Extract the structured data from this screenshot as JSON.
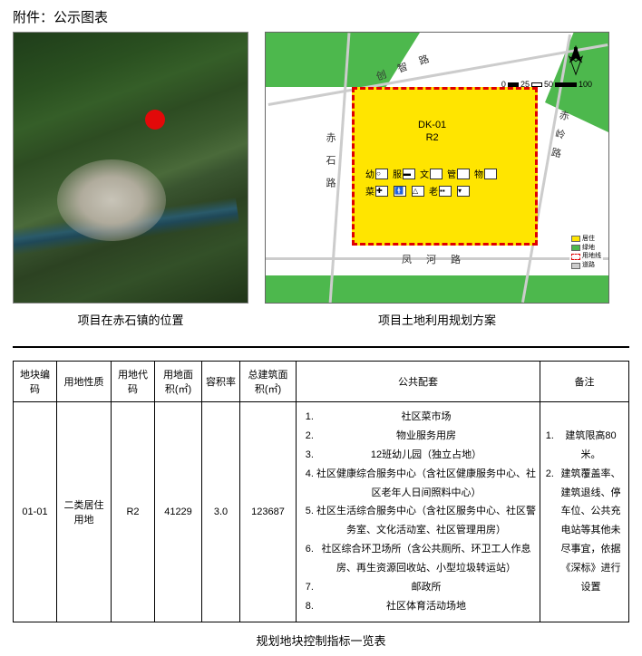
{
  "header": {
    "attachment_title": "附件：公示图表"
  },
  "left_map": {
    "caption": "项目在赤石镇的位置",
    "marker_color": "#e20909",
    "terrain_colors": [
      "#1f3d1a",
      "#355e28",
      "#4a6a3a"
    ],
    "town_color": "#c8c4b8",
    "river_color": "#1f4858"
  },
  "right_map": {
    "caption": "项目土地利用规划方案",
    "plot_fill": "#ffe500",
    "plot_border": "#e00000",
    "green_fill": "#4db84d",
    "block_code": "DK-01",
    "land_code": "R2",
    "roads": {
      "top": "创智路",
      "left": "赤石路",
      "right": "赤岭路",
      "bottom": "凤河路"
    },
    "icon_labels": [
      "幼",
      "服",
      "文",
      "管",
      "物",
      "菜",
      "老"
    ],
    "compass_label": "N",
    "scale_ticks": [
      "0",
      "25",
      "50",
      "100"
    ]
  },
  "table": {
    "columns": [
      "地块编码",
      "用地性质",
      "用地代码",
      "用地面积(㎡)",
      "容积率",
      "总建筑面积(㎡)",
      "公共配套",
      "备注"
    ],
    "row": {
      "plot_code": "01-01",
      "land_use": "二类居住用地",
      "land_code": "R2",
      "site_area": "41229",
      "far": "3.0",
      "gfa": "123687",
      "facilities": [
        "社区菜市场",
        "物业服务用房",
        "12班幼儿园（独立占地）",
        "社区健康综合服务中心（含社区健康服务中心、社区老年人日间照料中心）",
        "社区生活综合服务中心（含社区服务中心、社区警务室、文化活动室、社区管理用房）",
        "社区综合环卫场所（含公共厕所、环卫工人作息房、再生资源回收站、小型垃圾转运站）",
        "邮政所",
        "社区体育活动场地"
      ],
      "remarks": [
        "建筑限高80米。",
        "建筑覆盖率、建筑退线、停车位、公共充电站等其他未尽事宜，依据《深标》进行设置"
      ]
    },
    "caption": "规划地块控制指标一览表"
  }
}
